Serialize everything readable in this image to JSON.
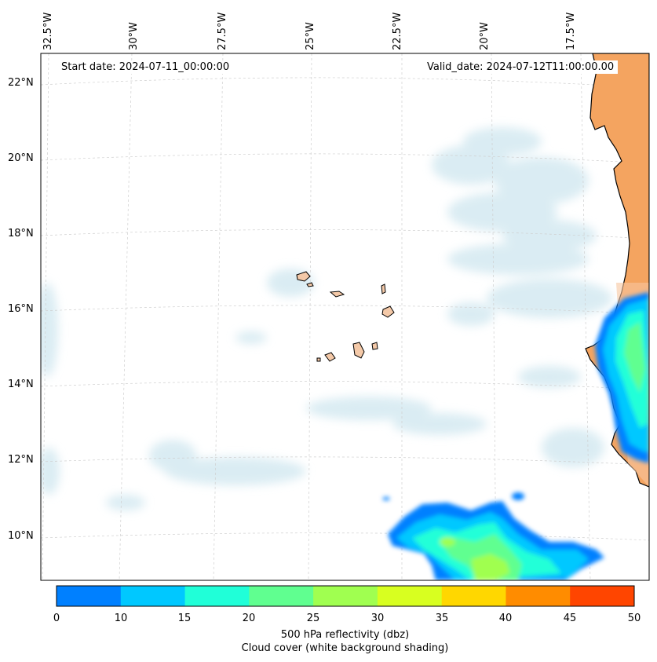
{
  "map": {
    "start_date": "Start date: 2024-07-11_00:00:00",
    "valid_date": "Valid_date: 2024-07-12T11:00:00.00",
    "lon_labels": [
      "32.5°W",
      "30°W",
      "27.5°W",
      "25°W",
      "22.5°W",
      "20°W",
      "17.5°W"
    ],
    "lat_labels": [
      "22°N",
      "20°N",
      "18°N",
      "16°N",
      "14°N",
      "12°N",
      "10°N"
    ],
    "land_color": "#f4a460",
    "ocean_color": "#ffffff",
    "cloud_color": "#cfe6ef"
  },
  "colorbar": {
    "ticks": [
      "0",
      "10",
      "15",
      "20",
      "25",
      "30",
      "35",
      "40",
      "45",
      "50"
    ],
    "colors": [
      "#0080ff",
      "#00c8ff",
      "#20ffd8",
      "#60ff90",
      "#a0ff50",
      "#d8ff20",
      "#ffd700",
      "#ff8c00",
      "#ff4500"
    ],
    "label_line1": "500 hPa reflectivity (dbz)",
    "label_line2": "Cloud cover (white background shading)"
  }
}
